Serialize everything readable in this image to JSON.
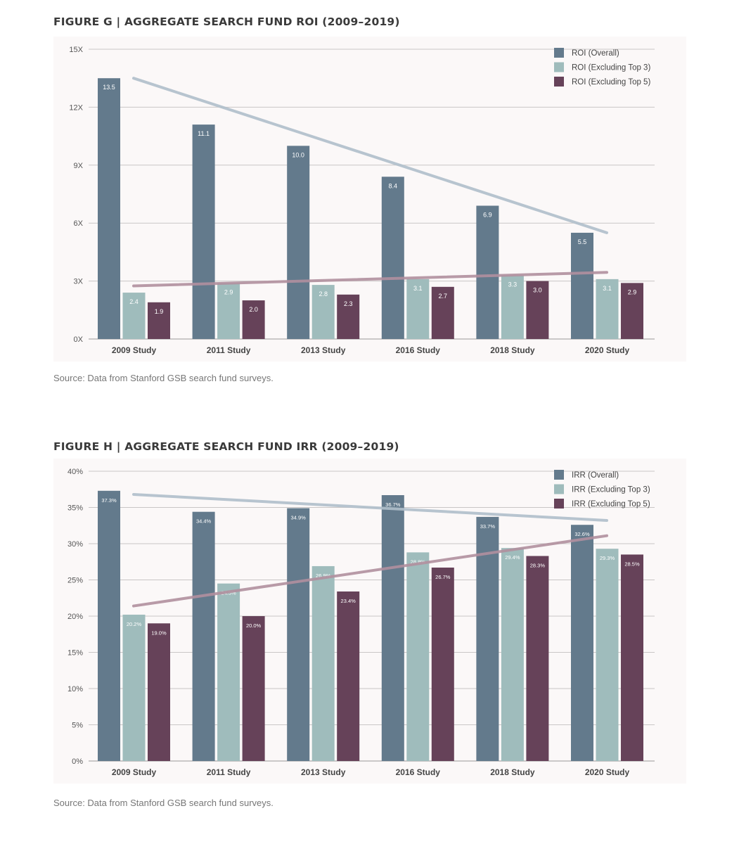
{
  "figures": [
    {
      "title": "FIGURE G | AGGREGATE SEARCH FUND ROI (2009–2019)",
      "source": "Source: Data from Stanford GSB search fund surveys."
    },
    {
      "title": "FIGURE H | AGGREGATE SEARCH FUND IRR (2009–2019)",
      "source": "Source: Data from Stanford GSB search fund surveys."
    }
  ],
  "chart_data": [
    {
      "type": "bar",
      "title": "FIGURE G | AGGREGATE SEARCH FUND ROI (2009–2019)",
      "categories": [
        "2009 Study",
        "2011 Study",
        "2013 Study",
        "2016 Study",
        "2018 Study",
        "2020 Study"
      ],
      "series": [
        {
          "name": "ROI (Overall)",
          "color": "#637a8c",
          "values": [
            13.5,
            11.1,
            10.0,
            8.4,
            6.9,
            5.5
          ],
          "labels": [
            "13.5",
            "11.1",
            "10.0",
            "8.4",
            "6.9",
            "5.5"
          ]
        },
        {
          "name": "ROI (Excluding Top 3)",
          "color": "#9fbcbc",
          "values": [
            2.4,
            2.9,
            2.8,
            3.1,
            3.3,
            3.1
          ],
          "labels": [
            "2.4",
            "2.9",
            "2.8",
            "3.1",
            "3.3",
            "3.1"
          ]
        },
        {
          "name": "ROI (Excluding Top 5)",
          "color": "#664259",
          "values": [
            1.9,
            2.0,
            2.3,
            2.7,
            3.0,
            2.9
          ],
          "labels": [
            "1.9",
            "2.0",
            "2.3",
            "2.7",
            "3.0",
            "2.9"
          ]
        }
      ],
      "trendlines": [
        {
          "color": "#b0bfcb",
          "from": [
            0,
            13.5
          ],
          "to": [
            5,
            5.5
          ]
        },
        {
          "color": "#b1909f",
          "from": [
            0,
            2.75
          ],
          "to": [
            5,
            3.45
          ]
        }
      ],
      "ylim": [
        0,
        15
      ],
      "yticks": [
        0,
        3,
        6,
        9,
        12,
        15
      ],
      "ytick_labels": [
        "0X",
        "3X",
        "6X",
        "9X",
        "12X",
        "15X"
      ],
      "grid": true,
      "legend": "top-right"
    },
    {
      "type": "bar",
      "title": "FIGURE H | AGGREGATE SEARCH FUND IRR (2009–2019)",
      "categories": [
        "2009 Study",
        "2011 Study",
        "2013 Study",
        "2016 Study",
        "2018 Study",
        "2020 Study"
      ],
      "series": [
        {
          "name": "IRR (Overall)",
          "color": "#637a8c",
          "values": [
            37.3,
            34.4,
            34.9,
            36.7,
            33.7,
            32.6
          ],
          "labels": [
            "37.3%",
            "34.4%",
            "34.9%",
            "36.7%",
            "33.7%",
            "32.6%"
          ]
        },
        {
          "name": "IRR (Excluding Top 3)",
          "color": "#9fbcbc",
          "values": [
            20.2,
            24.5,
            26.9,
            28.8,
            29.4,
            29.3
          ],
          "labels": [
            "20.2%",
            "24.5%",
            "26.9%",
            "28.8%",
            "29.4%",
            "29.3%"
          ]
        },
        {
          "name": "IRR (Excluding Top 5)",
          "color": "#664259",
          "values": [
            19.0,
            20.0,
            23.4,
            26.7,
            28.3,
            28.5
          ],
          "labels": [
            "19.0%",
            "20.0%",
            "23.4%",
            "26.7%",
            "28.3%",
            "28.5%"
          ]
        }
      ],
      "trendlines": [
        {
          "color": "#b0bfcb",
          "from": [
            0,
            36.8
          ],
          "to": [
            5,
            33.2
          ]
        },
        {
          "color": "#b1909f",
          "from": [
            0,
            21.4
          ],
          "to": [
            5,
            31.1
          ]
        }
      ],
      "ylim": [
        0,
        40
      ],
      "yticks": [
        0,
        5,
        10,
        15,
        20,
        25,
        30,
        35,
        40
      ],
      "ytick_labels": [
        "0%",
        "5%",
        "10%",
        "15%",
        "20%",
        "25%",
        "30%",
        "35%",
        "40%"
      ],
      "grid": true,
      "legend": "top-right"
    }
  ]
}
